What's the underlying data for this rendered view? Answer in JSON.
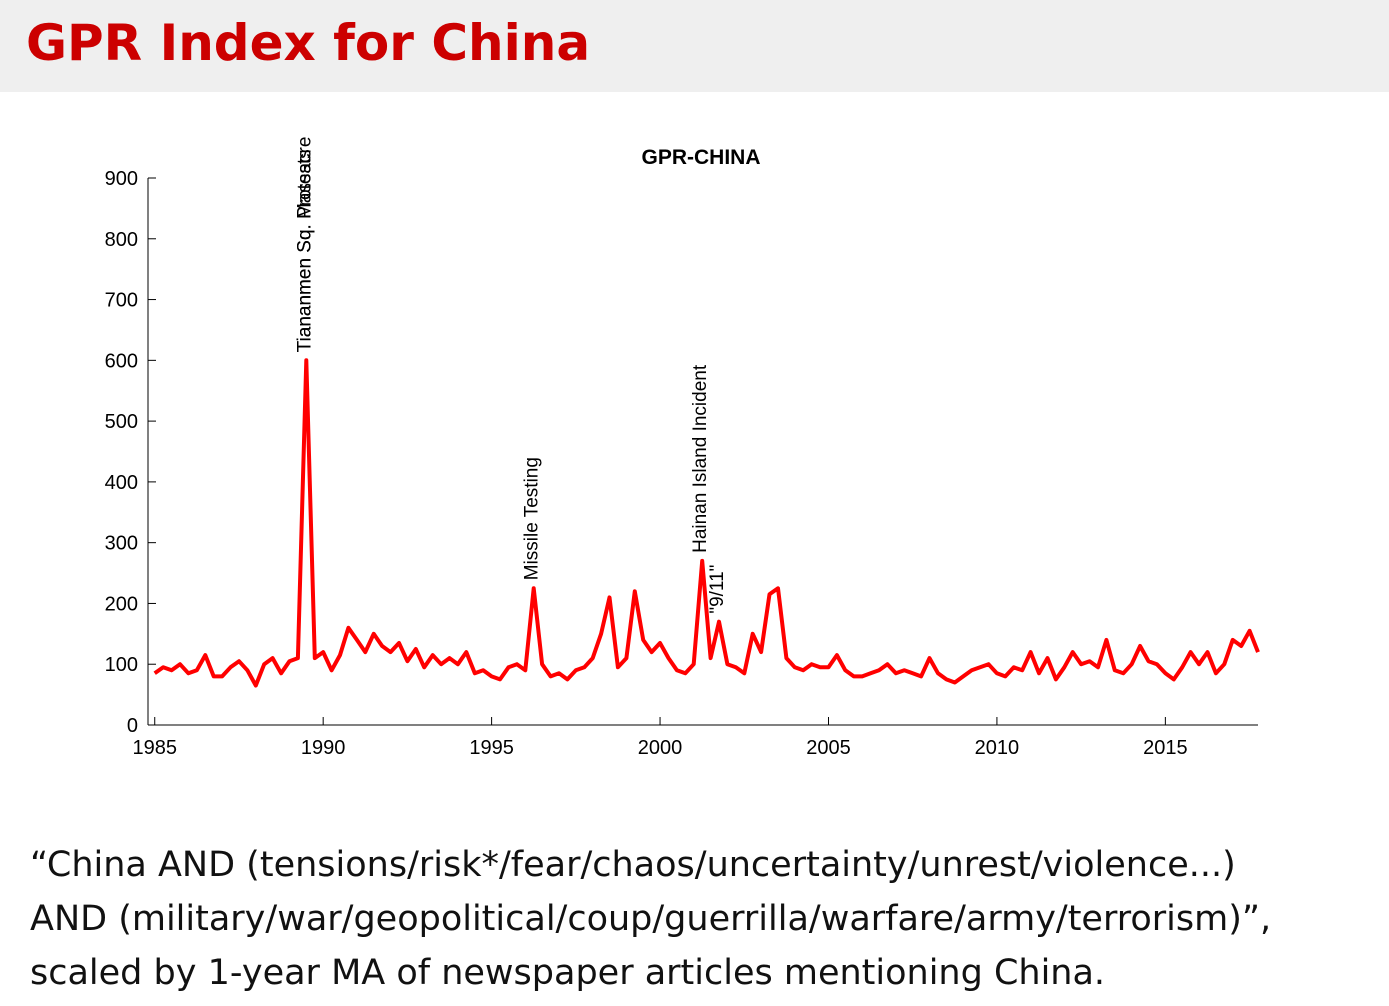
{
  "header": {
    "title": "GPR Index for China"
  },
  "caption": [
    "“China AND (tensions/risk*/fear/chaos/uncertainty/unrest/violence...)",
    "AND (military/war/geopolitical/coup/guerrilla/warfare/army/terrorism)”,",
    "scaled by 1-year MA of newspaper articles mentioning China."
  ],
  "chart_data": {
    "type": "line",
    "title": "GPR-CHINA",
    "x": [
      1985,
      1985.25,
      1985.5,
      1985.75,
      1986,
      1986.25,
      1986.5,
      1986.75,
      1987,
      1987.25,
      1987.5,
      1987.75,
      1988,
      1988.25,
      1988.5,
      1988.75,
      1989,
      1989.25,
      1989.5,
      1989.75,
      1990,
      1990.25,
      1990.5,
      1990.75,
      1991,
      1991.25,
      1991.5,
      1991.75,
      1992,
      1992.25,
      1992.5,
      1992.75,
      1993,
      1993.25,
      1993.5,
      1993.75,
      1994,
      1994.25,
      1994.5,
      1994.75,
      1995,
      1995.25,
      1995.5,
      1995.75,
      1996,
      1996.25,
      1996.5,
      1996.75,
      1997,
      1997.25,
      1997.5,
      1997.75,
      1998,
      1998.25,
      1998.5,
      1998.75,
      1999,
      1999.25,
      1999.5,
      1999.75,
      2000,
      2000.25,
      2000.5,
      2000.75,
      2001,
      2001.25,
      2001.5,
      2001.75,
      2002,
      2002.25,
      2002.5,
      2002.75,
      2003,
      2003.25,
      2003.5,
      2003.75,
      2004,
      2004.25,
      2004.5,
      2004.75,
      2005,
      2005.25,
      2005.5,
      2005.75,
      2006,
      2006.25,
      2006.5,
      2006.75,
      2007,
      2007.25,
      2007.5,
      2007.75,
      2008,
      2008.25,
      2008.5,
      2008.75,
      2009,
      2009.25,
      2009.5,
      2009.75,
      2010,
      2010.25,
      2010.5,
      2010.75,
      2011,
      2011.25,
      2011.5,
      2011.75,
      2012,
      2012.25,
      2012.5,
      2012.75,
      2013,
      2013.25,
      2013.5,
      2013.75,
      2014,
      2014.25,
      2014.5,
      2014.75,
      2015,
      2015.25,
      2015.5,
      2015.75,
      2016,
      2016.25,
      2016.5,
      2016.75,
      2017,
      2017.25,
      2017.5,
      2017.75
    ],
    "series": [
      {
        "name": "GPR-CHINA",
        "color": "#ff0000",
        "values": [
          85,
          95,
          90,
          100,
          85,
          90,
          115,
          80,
          80,
          95,
          105,
          90,
          65,
          100,
          110,
          85,
          105,
          110,
          600,
          110,
          120,
          90,
          115,
          160,
          140,
          120,
          150,
          130,
          120,
          135,
          105,
          125,
          95,
          115,
          100,
          110,
          100,
          120,
          85,
          90,
          80,
          75,
          95,
          100,
          90,
          225,
          100,
          80,
          85,
          75,
          90,
          95,
          110,
          150,
          210,
          95,
          110,
          220,
          140,
          120,
          135,
          110,
          90,
          85,
          100,
          270,
          110,
          170,
          100,
          95,
          85,
          150,
          120,
          215,
          225,
          110,
          95,
          90,
          100,
          95,
          95,
          115,
          90,
          80,
          80,
          85,
          90,
          100,
          85,
          90,
          85,
          80,
          110,
          85,
          75,
          70,
          80,
          90,
          95,
          100,
          85,
          80,
          95,
          90,
          120,
          85,
          110,
          75,
          95,
          120,
          100,
          105,
          95,
          140,
          90,
          85,
          100,
          130,
          105,
          100,
          85,
          75,
          95,
          120,
          100,
          120,
          85,
          100,
          140,
          130,
          155,
          120
        ]
      }
    ],
    "annotations": [
      {
        "text": "Tiananmen Sq. Protests",
        "x": 1989.5
      },
      {
        "text": "Tiananmen Sq. Massacre",
        "x": 1989.5
      },
      {
        "text": "Missile Testing",
        "x": 1996.25
      },
      {
        "text": "Hainan Island Incident",
        "x": 2001.25
      },
      {
        "text": "\"9/11\"",
        "x": 2001.75
      }
    ],
    "xlim": [
      1984.8,
      2017.75
    ],
    "ylim": [
      0,
      900
    ],
    "xticks": [
      1985,
      1990,
      1995,
      2000,
      2005,
      2010,
      2015
    ],
    "yticks": [
      0,
      100,
      200,
      300,
      400,
      500,
      600,
      700,
      800,
      900
    ],
    "grid": false
  }
}
